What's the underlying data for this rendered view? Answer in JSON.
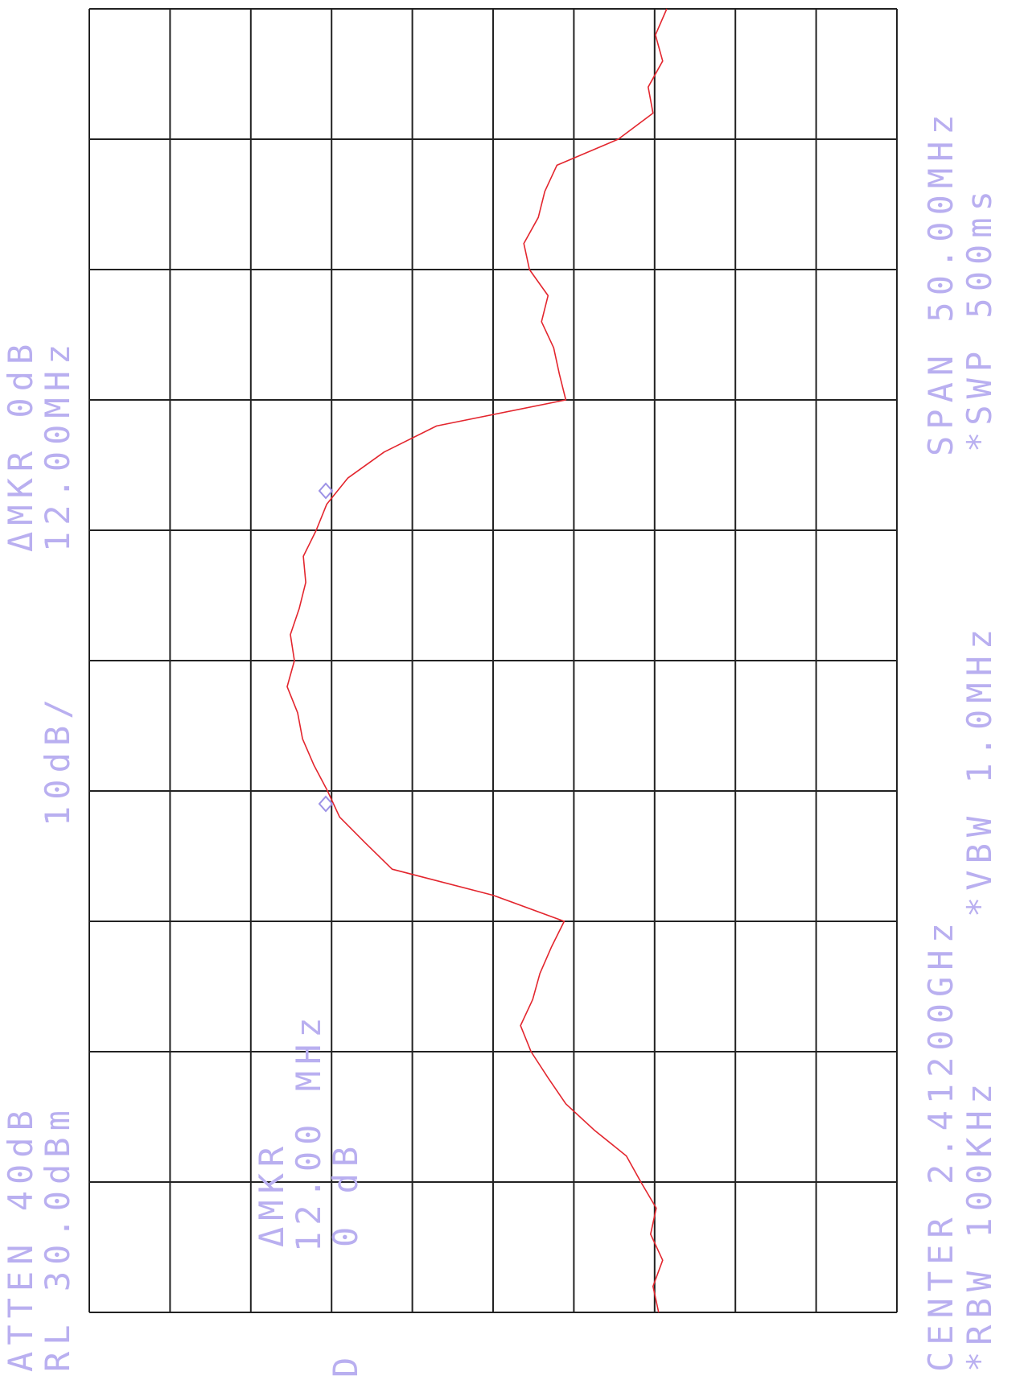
{
  "chart_data": {
    "type": "line",
    "annotations": [
      "ATTEN 40dB",
      "ΔMKR 0dB",
      "RL 30.0dBm",
      "10dB/",
      "12.00MHz",
      "CENTER 2.41200GHz",
      "SPAN 50.00MHz",
      "*RBW 100KHz",
      "*VBW 1.0MHz",
      "*SWP 500ms",
      "ΔMKR",
      "12.00 MHz",
      "0 dB",
      "D"
    ],
    "x": [
      2.387,
      2.388,
      2.389,
      2.39,
      2.391,
      2.392,
      2.393,
      2.394,
      2.395,
      2.396,
      2.397,
      2.398,
      2.399,
      2.4,
      2.401,
      2.402,
      2.403,
      2.404,
      2.405,
      2.406,
      2.407,
      2.408,
      2.409,
      2.41,
      2.411,
      2.412,
      2.413,
      2.414,
      2.415,
      2.416,
      2.417,
      2.418,
      2.419,
      2.42,
      2.421,
      2.422,
      2.423,
      2.424,
      2.425,
      2.426,
      2.427,
      2.428,
      2.429,
      2.43,
      2.431,
      2.432,
      2.433,
      2.434,
      2.435,
      2.436,
      2.437
    ],
    "values": [
      -40.5,
      -39.8,
      -41.0,
      -39.5,
      -40.2,
      -38.3,
      -36.5,
      -32.5,
      -29.0,
      -26.8,
      -24.7,
      -23.4,
      -24.9,
      -25.8,
      -27.2,
      -28.8,
      -20.0,
      -7.5,
      -4.2,
      -1.0,
      0.5,
      2.2,
      3.6,
      4.2,
      5.5,
      4.6,
      5.1,
      4.0,
      3.2,
      3.5,
      1.9,
      0.6,
      -2.0,
      -6.5,
      -13.0,
      -29.0,
      -28.2,
      -27.5,
      -26.0,
      -26.8,
      -24.5,
      -23.8,
      -25.6,
      -26.4,
      -27.9,
      -35.5,
      -39.8,
      -39.2,
      -41.0,
      -40.1,
      -41.5
    ],
    "color": "#e3262e",
    "xlim": [
      2.387,
      2.437
    ],
    "xticks": [
      2.387,
      2.392,
      2.397,
      2.402,
      2.407,
      2.412,
      2.417,
      2.422,
      2.427,
      2.432,
      2.437
    ],
    "ylim": [
      -70,
      30
    ],
    "yticks": [
      -70,
      -60,
      -50,
      -40,
      -30,
      -20,
      -10,
      0,
      10,
      20,
      30
    ],
    "grid": true,
    "tick_labels": false
  }
}
